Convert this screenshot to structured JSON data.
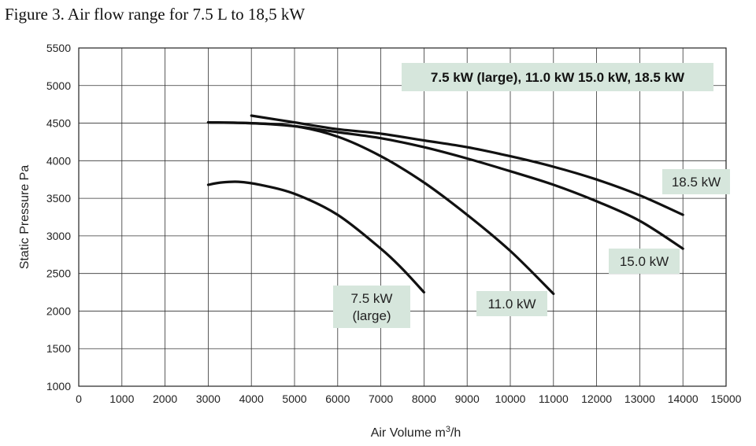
{
  "figure_title": "Figure 3. Air flow range for 7.5 L to 18,5 kW",
  "chart_data": {
    "type": "line",
    "title": "Figure 3. Air flow range for 7.5 L to 18,5 kW",
    "header_label": "7.5 kW (large), 11.0 kW 15.0 kW, 18.5 kW",
    "xlabel": "Air Volume  m³/h",
    "ylabel": "Static Pressure Pa",
    "xlim": [
      0,
      15000
    ],
    "ylim": [
      1000,
      5500
    ],
    "x_ticks": [
      "0",
      "1000",
      "2000",
      "3000",
      "4000",
      "5000",
      "6000",
      "7000",
      "8000",
      "9000",
      "10000",
      "11000",
      "12000",
      "13000",
      "14000",
      "15000"
    ],
    "y_ticks": [
      "1000",
      "1500",
      "2000",
      "2500",
      "3000",
      "3500",
      "4000",
      "4500",
      "5000",
      "5500"
    ],
    "grid": true,
    "label_fill": "#d6e6dc",
    "series": [
      {
        "name": "7.5 kW (large)",
        "label_lines": [
          "7.5 kW",
          "(large)"
        ],
        "color": "#111111",
        "points": [
          [
            3000,
            3680
          ],
          [
            3300,
            3710
          ],
          [
            3700,
            3720
          ],
          [
            4200,
            3680
          ],
          [
            5000,
            3560
          ],
          [
            6000,
            3280
          ],
          [
            7000,
            2830
          ],
          [
            7500,
            2560
          ],
          [
            8000,
            2250
          ]
        ]
      },
      {
        "name": "11.0 kW",
        "label_lines": [
          "11.0 kW"
        ],
        "color": "#111111",
        "points": [
          [
            3000,
            4510
          ],
          [
            4000,
            4500
          ],
          [
            5000,
            4460
          ],
          [
            6000,
            4320
          ],
          [
            7000,
            4060
          ],
          [
            8000,
            3710
          ],
          [
            9000,
            3280
          ],
          [
            10000,
            2800
          ],
          [
            11000,
            2230
          ]
        ]
      },
      {
        "name": "15.0 kW",
        "label_lines": [
          "15.0 kW"
        ],
        "color": "#111111",
        "points": [
          [
            3000,
            4510
          ],
          [
            4000,
            4500
          ],
          [
            5000,
            4460
          ],
          [
            6000,
            4380
          ],
          [
            7000,
            4300
          ],
          [
            8000,
            4180
          ],
          [
            9000,
            4030
          ],
          [
            10000,
            3860
          ],
          [
            11000,
            3680
          ],
          [
            12000,
            3460
          ],
          [
            13000,
            3200
          ],
          [
            14000,
            2830
          ]
        ]
      },
      {
        "name": "18.5 kW",
        "label_lines": [
          "18.5 kW"
        ],
        "color": "#111111",
        "points": [
          [
            4000,
            4600
          ],
          [
            5000,
            4510
          ],
          [
            6000,
            4420
          ],
          [
            7000,
            4360
          ],
          [
            8000,
            4270
          ],
          [
            9000,
            4180
          ],
          [
            10000,
            4060
          ],
          [
            11000,
            3920
          ],
          [
            12000,
            3750
          ],
          [
            13000,
            3540
          ],
          [
            14000,
            3280
          ]
        ]
      }
    ]
  }
}
